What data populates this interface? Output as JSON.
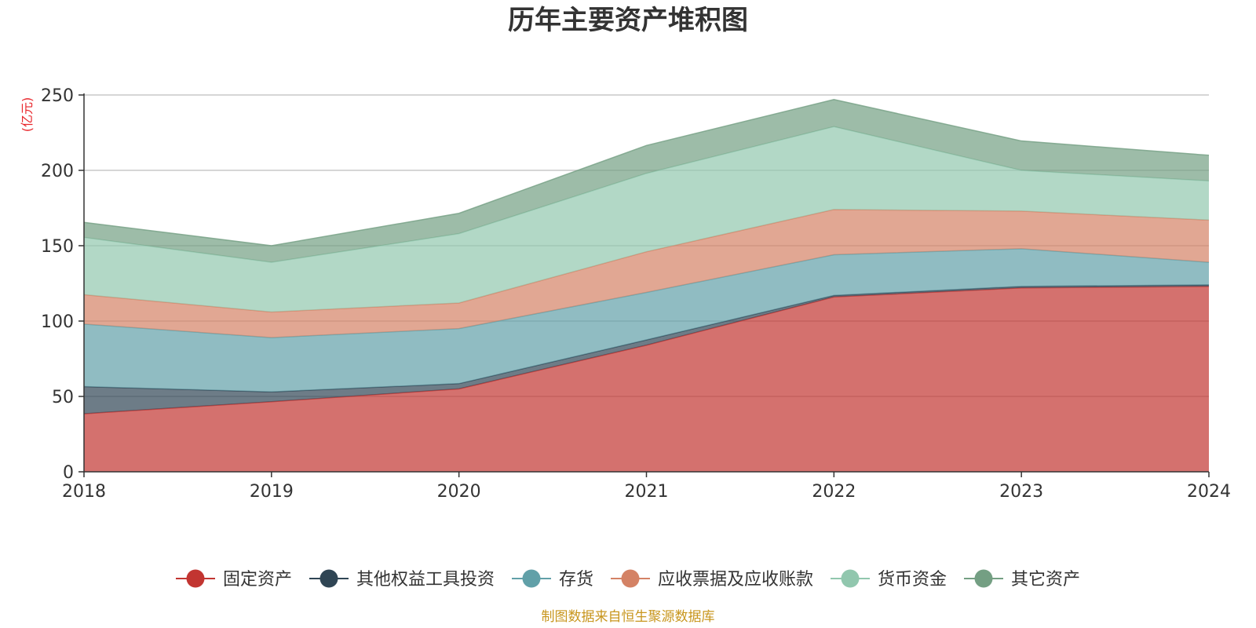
{
  "chart_data": {
    "type": "area",
    "stacked": true,
    "title": "历年主要资产堆积图",
    "unit_label": "(亿元)",
    "x": [
      "2018",
      "2019",
      "2020",
      "2021",
      "2022",
      "2023",
      "2024"
    ],
    "ylim": [
      0,
      250
    ],
    "yticks": [
      0,
      50,
      100,
      150,
      200,
      250
    ],
    "grid": true,
    "legend_position": "bottom",
    "series": [
      {
        "name": "固定资产",
        "color": "#c23531",
        "values": [
          38.5,
          46.5,
          55,
          84,
          116,
          122,
          123
        ]
      },
      {
        "name": "其他权益工具投资",
        "color": "#2f4554",
        "values": [
          18,
          6.5,
          3.5,
          3.5,
          1,
          1,
          1
        ]
      },
      {
        "name": "存货",
        "color": "#61a0a8",
        "values": [
          41.5,
          36,
          36.5,
          31.5,
          27,
          25,
          15
        ]
      },
      {
        "name": "应收票据及应收账款",
        "color": "#d48265",
        "values": [
          19.5,
          17,
          17,
          27,
          30,
          25,
          28
        ]
      },
      {
        "name": "货币资金",
        "color": "#91c7ae",
        "values": [
          38,
          33,
          46,
          52,
          55,
          27,
          26
        ]
      },
      {
        "name": "其它资产",
        "color": "#749f83",
        "values": [
          10,
          11,
          13.5,
          18.5,
          18,
          19.5,
          17
        ]
      }
    ],
    "source": "制图数据来自恒生聚源数据库"
  }
}
